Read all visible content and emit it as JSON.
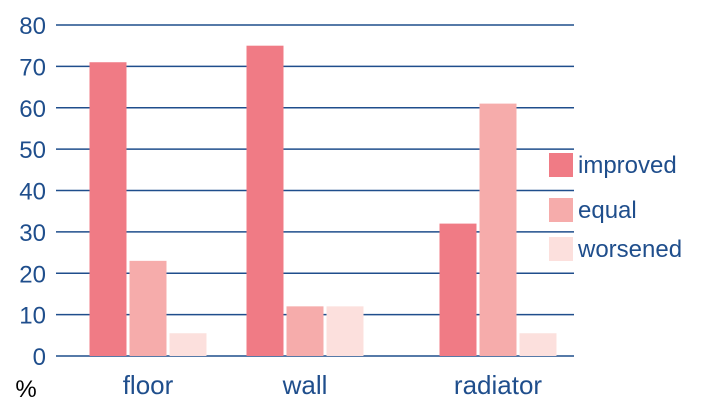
{
  "chart_data": {
    "type": "bar",
    "categories": [
      "floor",
      "wall",
      "radiator"
    ],
    "series": [
      {
        "name": "improved",
        "values": [
          71,
          75,
          32
        ],
        "color": "#f07b85"
      },
      {
        "name": "equal",
        "values": [
          23,
          12,
          61
        ],
        "color": "#f6acab"
      },
      {
        "name": "worsened",
        "values": [
          5.5,
          12,
          5.5
        ],
        "color": "#fce0dd"
      }
    ],
    "ylim": [
      0,
      80
    ],
    "yticks": [
      0,
      10,
      20,
      30,
      40,
      50,
      60,
      70,
      80
    ],
    "ylabel": "%",
    "grid": true,
    "legend_position": "right",
    "colors": {
      "axis_text": "#1f4e8c",
      "grid": "#1f4e8c"
    }
  }
}
